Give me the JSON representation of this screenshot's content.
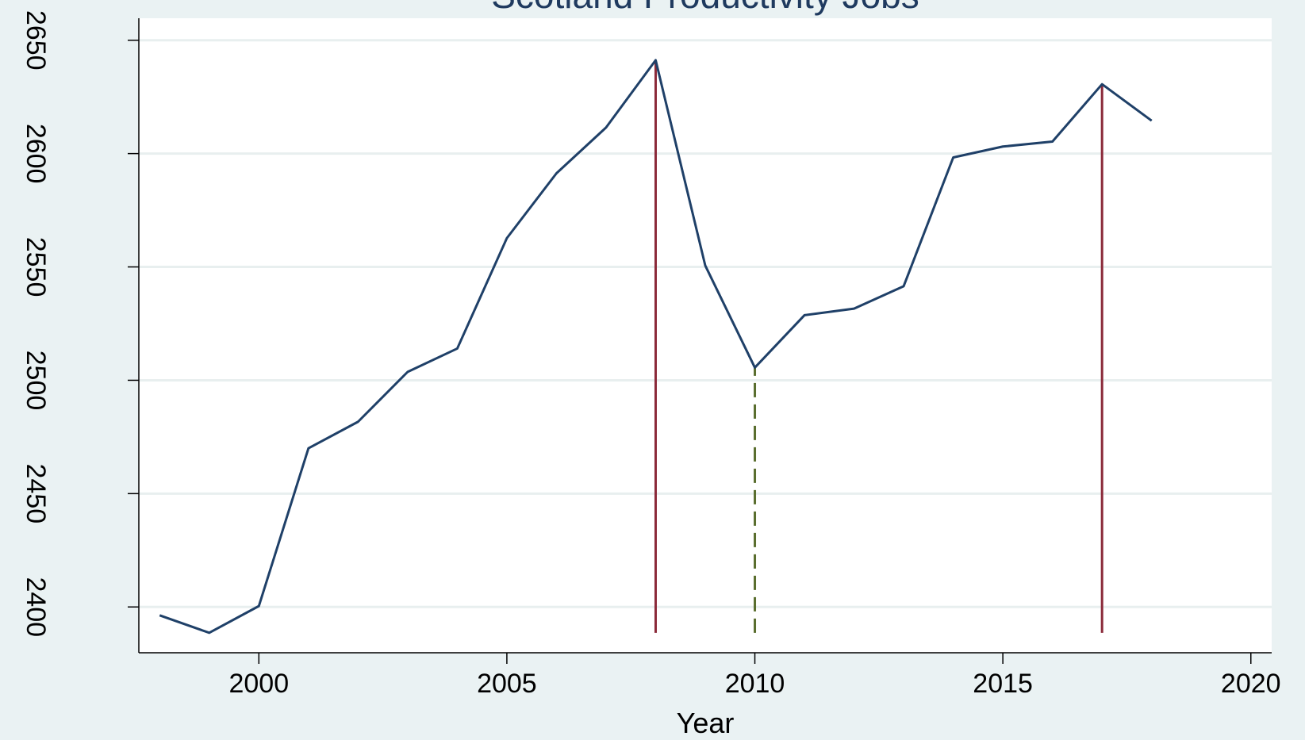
{
  "chart_data": {
    "type": "line",
    "title": "Scotland Productivity Jobs",
    "x_label": "Year",
    "x": [
      1998,
      1999,
      2000,
      2001,
      2002,
      2003,
      2004,
      2005,
      2006,
      2007,
      2008,
      2009,
      2010,
      2011,
      2012,
      2013,
      2014,
      2015,
      2016,
      2017,
      2018
    ],
    "series": [
      {
        "name": "Productivity Jobs",
        "color": "#1f4068",
        "values": [
          2396.3,
          2388.6,
          2400.4,
          2470,
          2481.7,
          2503.7,
          2514,
          2562.7,
          2591.3,
          2611.5,
          2641.2,
          2550.6,
          2505.6,
          2528.7,
          2531.6,
          2541.5,
          2598.3,
          2603.1,
          2605.3,
          2630.6,
          2614.5
        ]
      }
    ],
    "vlines": [
      {
        "x": 2008,
        "color": "#8b2a3a",
        "style": "solid"
      },
      {
        "x": 2010,
        "color": "#5a6e2e",
        "style": "dashed"
      },
      {
        "x": 2017,
        "color": "#8b2a3a",
        "style": "solid"
      }
    ],
    "xlim": [
      1997.58,
      2020.42
    ],
    "ylim": [
      2379.8,
      2659.7
    ],
    "xticks": [
      2000,
      2005,
      2010,
      2015,
      2020
    ],
    "yticks": [
      2400,
      2450,
      2500,
      2550,
      2600,
      2650
    ],
    "grid": true
  }
}
